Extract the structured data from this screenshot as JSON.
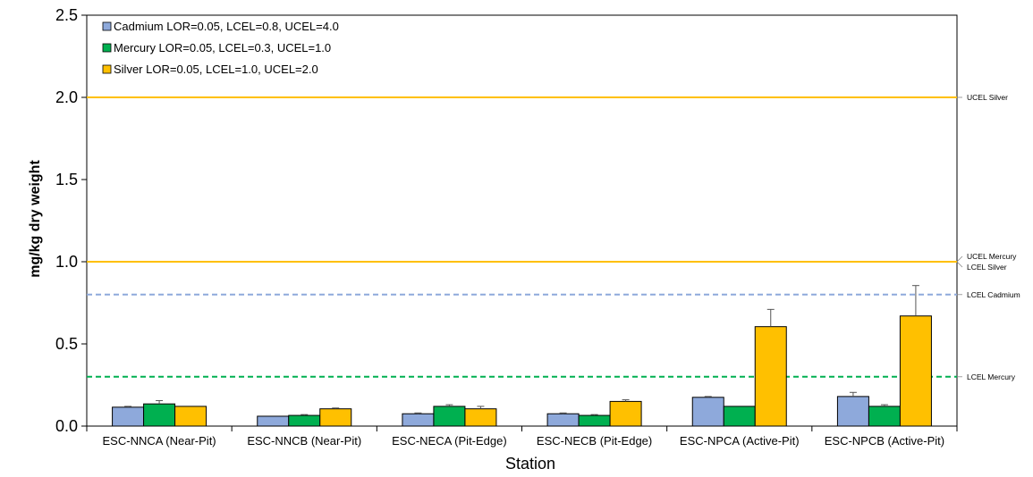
{
  "chart_data": {
    "type": "bar",
    "title": "",
    "xlabel": "Station",
    "ylabel": "mg/kg dry weight",
    "ylim": [
      0,
      2.5
    ],
    "yticks": [
      "0.0",
      "0.5",
      "1.0",
      "1.5",
      "2.0",
      "2.5"
    ],
    "grid": false,
    "legend_position": "top-left",
    "categories": [
      "ESC-NNCA (Near-Pit)",
      "ESC-NNCB (Near-Pit)",
      "ESC-NECA (Pit-Edge)",
      "ESC-NECB (Pit-Edge)",
      "ESC-NPCA (Active-Pit)",
      "ESC-NPCB (Active-Pit)"
    ],
    "series": [
      {
        "name": "Cadmium LOR=0.05, LCEL=0.8, UCEL=4.0",
        "color": "#8EA9DB",
        "values": [
          0.115,
          0.06,
          0.075,
          0.075,
          0.175,
          0.18
        ],
        "error": [
          0.005,
          0.0,
          0.005,
          0.005,
          0.005,
          0.025
        ]
      },
      {
        "name": "Mercury LOR=0.05, LCEL=0.3, UCEL=1.0",
        "color": "#00B050",
        "values": [
          0.135,
          0.065,
          0.12,
          0.065,
          0.12,
          0.12
        ],
        "error": [
          0.02,
          0.005,
          0.01,
          0.005,
          0.0,
          0.01
        ]
      },
      {
        "name": "Silver LOR=0.05, LCEL=1.0, UCEL=2.0",
        "color": "#FFC000",
        "values": [
          0.12,
          0.105,
          0.105,
          0.15,
          0.605,
          0.67
        ],
        "error": [
          0.0,
          0.005,
          0.015,
          0.01,
          0.105,
          0.185
        ]
      }
    ],
    "reference_lines": [
      {
        "label": "UCEL Silver",
        "value": 2.0,
        "color": "#FFC000",
        "style": "solid"
      },
      {
        "label": "UCEL Mercury",
        "value": 1.0,
        "color": "#00B050",
        "style": "dashed"
      },
      {
        "label": "LCEL Silver",
        "value": 1.0,
        "color": "#FFC000",
        "style": "solid"
      },
      {
        "label": "LCEL Cadmium",
        "value": 0.8,
        "color": "#8EA9DB",
        "style": "dashed"
      },
      {
        "label": "LCEL Mercury",
        "value": 0.3,
        "color": "#00B050",
        "style": "dashed"
      }
    ]
  }
}
